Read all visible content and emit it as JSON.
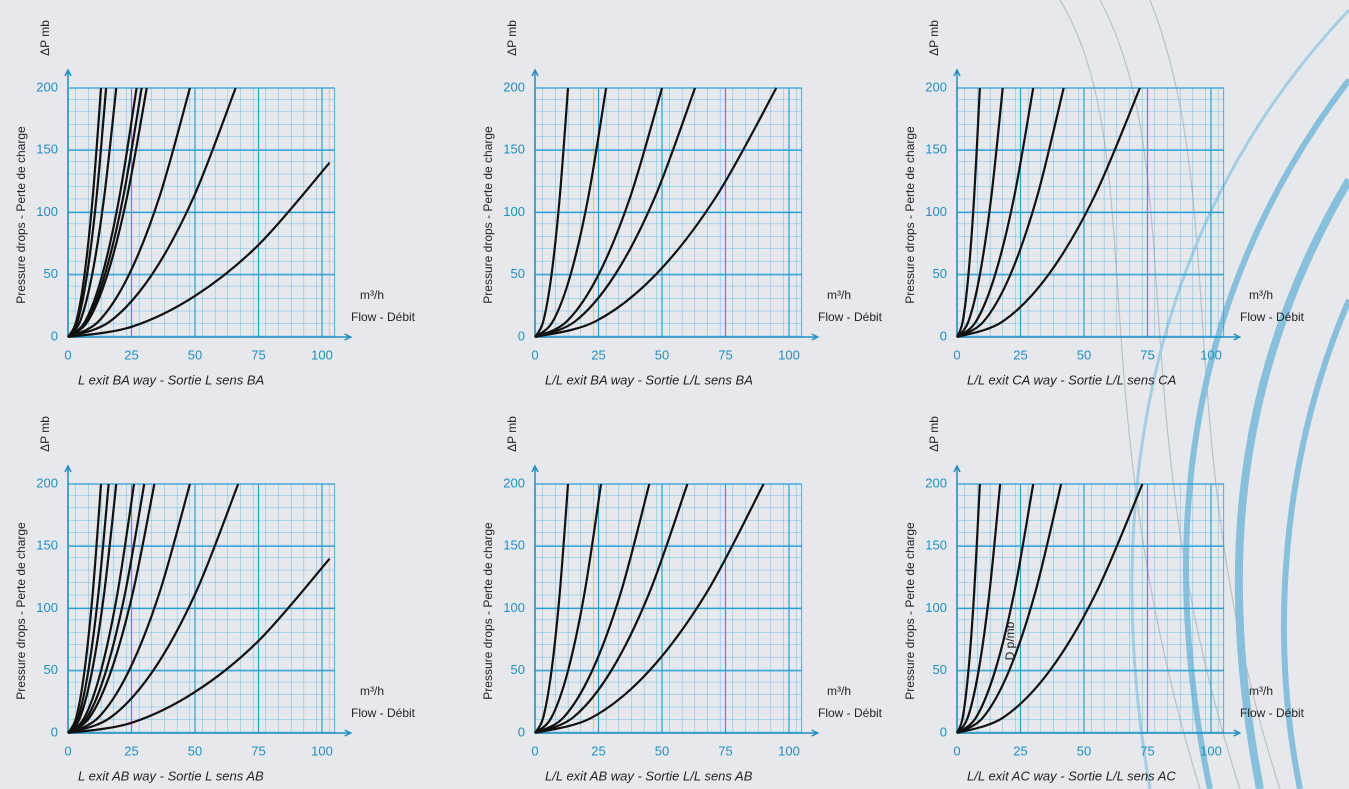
{
  "chart_data": [
    {
      "type": "line",
      "ylabel_unit": "ΔP mb",
      "ylabel": "Pressure drops - Perte de charge",
      "xlabel_unit": "m³/h",
      "xlabel": "Flow - Débit",
      "caption": "L exit BA way - Sortie L sens BA",
      "xlim": [
        0,
        105
      ],
      "ylim": [
        0,
        200
      ],
      "xticks": [
        0,
        25,
        50,
        75,
        100
      ],
      "yticks": [
        0,
        50,
        100,
        150,
        200
      ],
      "grid": true,
      "grid_color": "#2a9fd4",
      "series": [
        {
          "color": "#111111",
          "x": [
            0,
            3.25,
            6.5,
            9.75,
            13
          ],
          "values": [
            0,
            12.5,
            50,
            112.5,
            200
          ]
        },
        {
          "color": "#111111",
          "x": [
            0,
            3.75,
            7.5,
            11.25,
            15
          ],
          "values": [
            0,
            12.5,
            50,
            112.5,
            200
          ]
        },
        {
          "color": "#111111",
          "x": [
            0,
            4.75,
            9.5,
            14.25,
            19
          ],
          "values": [
            0,
            12.5,
            50,
            112.5,
            200
          ]
        },
        {
          "color": "#111111",
          "x": [
            0,
            6.75,
            13.5,
            20.25,
            27
          ],
          "values": [
            0,
            12.5,
            50,
            112.5,
            200
          ]
        },
        {
          "color": "#111111",
          "x": [
            0,
            7.25,
            14.5,
            21.75,
            29
          ],
          "values": [
            0,
            12.5,
            50,
            112.5,
            200
          ]
        },
        {
          "color": "#111111",
          "x": [
            0,
            7.75,
            15.5,
            23.25,
            31
          ],
          "values": [
            0,
            12.5,
            50,
            112.5,
            200
          ]
        },
        {
          "color": "#111111",
          "x": [
            0,
            12,
            24,
            36,
            48
          ],
          "values": [
            0,
            12.5,
            50,
            112.5,
            200
          ]
        },
        {
          "color": "#111111",
          "x": [
            0,
            16.5,
            33,
            49.5,
            66
          ],
          "values": [
            0,
            12.5,
            50,
            112.5,
            200
          ]
        },
        {
          "color": "#111111",
          "x": [
            0,
            25,
            50,
            75,
            103
          ],
          "values": [
            0,
            8.2,
            33,
            74,
            140
          ]
        }
      ]
    },
    {
      "type": "line",
      "ylabel_unit": "ΔP mb",
      "ylabel": "Pressure drops - Perte de charge",
      "xlabel_unit": "m³/h",
      "xlabel": "Flow - Débit",
      "caption": "L/L exit BA way - Sortie L/L sens BA",
      "xlim": [
        0,
        105
      ],
      "ylim": [
        0,
        200
      ],
      "xticks": [
        0,
        25,
        50,
        75,
        100
      ],
      "yticks": [
        0,
        50,
        100,
        150,
        200
      ],
      "grid": true,
      "grid_color": "#2a9fd4",
      "series": [
        {
          "color": "#111111",
          "x": [
            0,
            3.25,
            6.5,
            9.75,
            13
          ],
          "values": [
            0,
            12.5,
            50,
            112.5,
            200
          ]
        },
        {
          "color": "#111111",
          "x": [
            0,
            7,
            14,
            21,
            28
          ],
          "values": [
            0,
            12.5,
            50,
            112.5,
            200
          ]
        },
        {
          "color": "#111111",
          "x": [
            0,
            12.5,
            25,
            37.5,
            50
          ],
          "values": [
            0,
            12.5,
            50,
            112.5,
            200
          ]
        },
        {
          "color": "#111111",
          "x": [
            0,
            15.75,
            31.5,
            47.25,
            63
          ],
          "values": [
            0,
            12.5,
            50,
            112.5,
            200
          ]
        },
        {
          "color": "#111111",
          "x": [
            0,
            23.75,
            47.5,
            71.25,
            95
          ],
          "values": [
            0,
            12.5,
            50,
            112.5,
            200
          ]
        }
      ]
    },
    {
      "type": "line",
      "ylabel_unit": "ΔP mb",
      "ylabel": "Pressure drops - Perte de charge",
      "xlabel_unit": "m³/h",
      "xlabel": "Flow - Débit",
      "caption": "L/L exit CA way - Sortie L/L sens CA",
      "xlim": [
        0,
        105
      ],
      "ylim": [
        0,
        200
      ],
      "xticks": [
        0,
        25,
        50,
        75,
        100
      ],
      "yticks": [
        0,
        50,
        100,
        150,
        200
      ],
      "grid": true,
      "grid_color": "#2a9fd4",
      "series": [
        {
          "color": "#111111",
          "x": [
            0,
            2.25,
            4.5,
            6.75,
            9
          ],
          "values": [
            0,
            12.5,
            50,
            112.5,
            200
          ]
        },
        {
          "color": "#111111",
          "x": [
            0,
            4.5,
            9,
            13.5,
            18
          ],
          "values": [
            0,
            12.5,
            50,
            112.5,
            200
          ]
        },
        {
          "color": "#111111",
          "x": [
            0,
            7.5,
            15,
            22.5,
            30
          ],
          "values": [
            0,
            12.5,
            50,
            112.5,
            200
          ]
        },
        {
          "color": "#111111",
          "x": [
            0,
            10.5,
            21,
            31.5,
            42
          ],
          "values": [
            0,
            12.5,
            50,
            112.5,
            200
          ]
        },
        {
          "color": "#111111",
          "x": [
            0,
            18,
            36,
            54,
            72
          ],
          "values": [
            0,
            12.5,
            50,
            112.5,
            200
          ]
        }
      ]
    },
    {
      "type": "line",
      "ylabel_unit": "ΔP mb",
      "ylabel": "Pressure drops - Perte de charge",
      "xlabel_unit": "m³/h",
      "xlabel": "Flow - Débit",
      "caption": "L exit AB way - Sortie L sens AB",
      "xlim": [
        0,
        105
      ],
      "ylim": [
        0,
        200
      ],
      "xticks": [
        0,
        25,
        50,
        75,
        100
      ],
      "yticks": [
        0,
        50,
        100,
        150,
        200
      ],
      "grid": true,
      "grid_color": "#2a9fd4",
      "series": [
        {
          "color": "#111111",
          "x": [
            0,
            3.25,
            6.5,
            9.75,
            13
          ],
          "values": [
            0,
            12.5,
            50,
            112.5,
            200
          ]
        },
        {
          "color": "#111111",
          "x": [
            0,
            4,
            8,
            12,
            16
          ],
          "values": [
            0,
            12.5,
            50,
            112.5,
            200
          ]
        },
        {
          "color": "#111111",
          "x": [
            0,
            4.75,
            9.5,
            14.25,
            19
          ],
          "values": [
            0,
            12.5,
            50,
            112.5,
            200
          ]
        },
        {
          "color": "#111111",
          "x": [
            0,
            6.5,
            13,
            19.5,
            26
          ],
          "values": [
            0,
            12.5,
            50,
            112.5,
            200
          ]
        },
        {
          "color": "#111111",
          "x": [
            0,
            7.5,
            15,
            22.5,
            30
          ],
          "values": [
            0,
            12.5,
            50,
            112.5,
            200
          ]
        },
        {
          "color": "#111111",
          "x": [
            0,
            8.5,
            17,
            25.5,
            34
          ],
          "values": [
            0,
            12.5,
            50,
            112.5,
            200
          ]
        },
        {
          "color": "#111111",
          "x": [
            0,
            12,
            24,
            36,
            48
          ],
          "values": [
            0,
            12.5,
            50,
            112.5,
            200
          ]
        },
        {
          "color": "#111111",
          "x": [
            0,
            16.75,
            33.5,
            50.25,
            67
          ],
          "values": [
            0,
            12.5,
            50,
            112.5,
            200
          ]
        },
        {
          "color": "#111111",
          "x": [
            0,
            25,
            50,
            75,
            103
          ],
          "values": [
            0,
            8.2,
            33,
            74,
            140
          ]
        }
      ]
    },
    {
      "type": "line",
      "ylabel_unit": "ΔP mb",
      "ylabel": "Pressure drops - Perte de charge",
      "xlabel_unit": "m³/h",
      "xlabel": "Flow - Débit",
      "caption": "L/L exit AB way - Sortie L/L sens AB",
      "xlim": [
        0,
        105
      ],
      "ylim": [
        0,
        200
      ],
      "xticks": [
        0,
        25,
        50,
        75,
        100
      ],
      "yticks": [
        0,
        50,
        100,
        150,
        200
      ],
      "grid": true,
      "grid_color": "#2a9fd4",
      "series": [
        {
          "color": "#111111",
          "x": [
            0,
            3.25,
            6.5,
            9.75,
            13
          ],
          "values": [
            0,
            12.5,
            50,
            112.5,
            200
          ]
        },
        {
          "color": "#111111",
          "x": [
            0,
            6.5,
            13,
            19.5,
            26
          ],
          "values": [
            0,
            12.5,
            50,
            112.5,
            200
          ]
        },
        {
          "color": "#111111",
          "x": [
            0,
            11.25,
            22.5,
            33.75,
            45
          ],
          "values": [
            0,
            12.5,
            50,
            112.5,
            200
          ]
        },
        {
          "color": "#111111",
          "x": [
            0,
            15,
            30,
            45,
            60
          ],
          "values": [
            0,
            12.5,
            50,
            112.5,
            200
          ]
        },
        {
          "color": "#111111",
          "x": [
            0,
            22.5,
            45,
            67.5,
            90
          ],
          "values": [
            0,
            12.5,
            50,
            112.5,
            200
          ]
        }
      ]
    },
    {
      "type": "line",
      "ylabel_unit": "ΔP mb",
      "ylabel": "Pressure drops - Perte de charge",
      "xlabel_unit": "m³/h",
      "xlabel": "Flow - Débit",
      "caption": "L/L exit AC way - Sortie L/L sens AC",
      "annotation": "D p/mb",
      "xlim": [
        0,
        105
      ],
      "ylim": [
        0,
        200
      ],
      "xticks": [
        0,
        25,
        50,
        75,
        100
      ],
      "yticks": [
        0,
        50,
        100,
        150,
        200
      ],
      "grid": true,
      "grid_color": "#2a9fd4",
      "series": [
        {
          "color": "#111111",
          "x": [
            0,
            2.25,
            4.5,
            6.75,
            9
          ],
          "values": [
            0,
            12.5,
            50,
            112.5,
            200
          ]
        },
        {
          "color": "#111111",
          "x": [
            0,
            4.25,
            8.5,
            12.75,
            17
          ],
          "values": [
            0,
            12.5,
            50,
            112.5,
            200
          ]
        },
        {
          "color": "#111111",
          "x": [
            0,
            7.5,
            15,
            22.5,
            30
          ],
          "values": [
            0,
            12.5,
            50,
            112.5,
            200
          ]
        },
        {
          "color": "#111111",
          "x": [
            0,
            10.25,
            20.5,
            30.75,
            41
          ],
          "values": [
            0,
            12.5,
            50,
            112.5,
            200
          ]
        },
        {
          "color": "#111111",
          "x": [
            0,
            18.25,
            36.5,
            54.75,
            73
          ],
          "values": [
            0,
            12.5,
            50,
            112.5,
            200
          ]
        }
      ]
    }
  ]
}
